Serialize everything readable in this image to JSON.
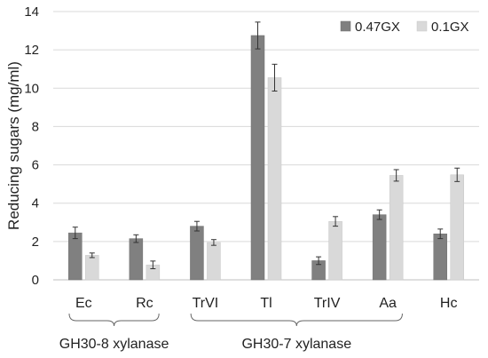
{
  "chart_data": {
    "type": "bar",
    "title": "",
    "xlabel": "",
    "ylabel": "Reducing sugars (mg/ml)",
    "ylim": [
      0,
      14
    ],
    "yticks": [
      "0",
      "2",
      "4",
      "6",
      "8",
      "10",
      "12",
      "14"
    ],
    "categories": [
      "Ec",
      "Rc",
      "TrVI",
      "Tl",
      "TrIV",
      "Aa",
      "Hc"
    ],
    "series": [
      {
        "name": "0.47GX",
        "color": "#808080",
        "values": [
          2.45,
          2.15,
          2.8,
          12.75,
          1.0,
          3.4,
          2.4
        ],
        "errors": [
          0.3,
          0.2,
          0.25,
          0.7,
          0.2,
          0.25,
          0.25
        ]
      },
      {
        "name": "0.1GX",
        "color": "#d9d9d9",
        "values": [
          1.28,
          0.78,
          1.95,
          10.55,
          3.05,
          5.45,
          5.48
        ],
        "errors": [
          0.12,
          0.2,
          0.15,
          0.7,
          0.25,
          0.3,
          0.35
        ]
      }
    ],
    "groups": [
      {
        "label": "GH30-8 xylanase",
        "categories": [
          "Ec",
          "Rc"
        ]
      },
      {
        "label": "GH30-7 xylanase",
        "categories": [
          "TrVI",
          "Tl",
          "TrIV",
          "Aa"
        ]
      }
    ],
    "grid": true,
    "legend_position": "top-right"
  }
}
